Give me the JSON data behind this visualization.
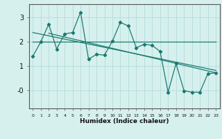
{
  "title": "",
  "xlabel": "Humidex (Indice chaleur)",
  "bg_color": "#d6f0ee",
  "grid_color": "#b8dedd",
  "line_color": "#1a7a6e",
  "xlim": [
    -0.5,
    23.5
  ],
  "ylim": [
    -0.75,
    3.55
  ],
  "yticks": [
    0,
    1,
    2,
    3
  ],
  "ytick_labels": [
    "-0",
    "1",
    "2",
    "3"
  ],
  "xticks": [
    0,
    1,
    2,
    3,
    4,
    5,
    6,
    7,
    8,
    9,
    10,
    11,
    12,
    13,
    14,
    15,
    16,
    17,
    18,
    19,
    20,
    21,
    22,
    23
  ],
  "series1_x": [
    0,
    1,
    2,
    3,
    4,
    5,
    6,
    7,
    8,
    9,
    10,
    11,
    12,
    13,
    14,
    15,
    16,
    17,
    18,
    19,
    20,
    21,
    22,
    23
  ],
  "series1_y": [
    1.4,
    2.0,
    2.72,
    1.7,
    2.32,
    2.38,
    3.22,
    1.28,
    1.48,
    1.45,
    2.02,
    2.8,
    2.65,
    1.75,
    1.9,
    1.85,
    1.6,
    -0.08,
    1.1,
    -0.02,
    -0.08,
    -0.08,
    0.68,
    0.72
  ],
  "trend1_x": [
    0,
    23
  ],
  "trend1_y": [
    2.0,
    2.0
  ],
  "trend2_x": [
    0,
    23
  ],
  "trend2_y": [
    2.38,
    0.82
  ],
  "trend3_x": [
    2,
    23
  ],
  "trend3_y": [
    2.35,
    0.72
  ]
}
